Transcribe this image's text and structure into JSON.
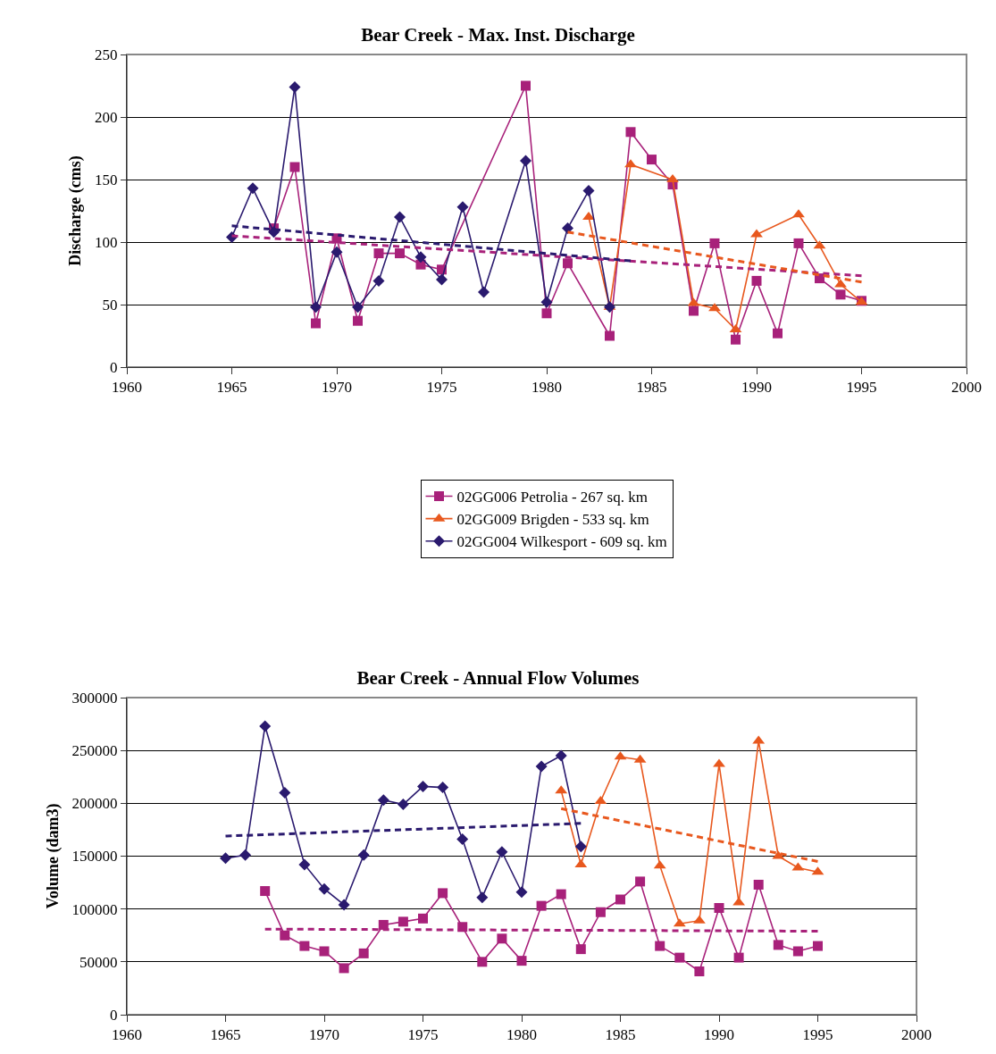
{
  "chart_data": [
    {
      "type": "line",
      "title": "Bear Creek - Max. Inst. Discharge",
      "ylabel": "Discharge (cms)",
      "xlim": [
        1960,
        2000
      ],
      "xticks": [
        1960,
        1965,
        1970,
        1975,
        1980,
        1985,
        1990,
        1995,
        2000
      ],
      "ylim": [
        0,
        250
      ],
      "yticks": [
        0,
        50,
        100,
        150,
        200,
        250
      ],
      "grid": "y",
      "legend": "bottom",
      "series": [
        {
          "name": "02GG006 Petrolia - 267 sq. km",
          "color": "#a8217a",
          "marker": "square",
          "line_style": "solid",
          "x": [
            1967,
            1968,
            1969,
            1970,
            1971,
            1972,
            1973,
            1974,
            1975,
            1979,
            1980,
            1981,
            1983,
            1984,
            1985,
            1986,
            1987,
            1988,
            1989,
            1990,
            1991,
            1992,
            1993,
            1994,
            1995
          ],
          "values": [
            111,
            160,
            35,
            103,
            37,
            91,
            91,
            82,
            78,
            225,
            43,
            83,
            25,
            188,
            166,
            146,
            45,
            99,
            22,
            69,
            27,
            99,
            71,
            58,
            53
          ]
        },
        {
          "name": "02GG009 Brigden - 533 sq. km",
          "color": "#e8581e",
          "marker": "triangle",
          "line_style": "solid",
          "x": [
            1982,
            1983,
            1984,
            1986,
            1987,
            1988,
            1989,
            1990,
            1992,
            1993,
            1994,
            1995
          ],
          "values": [
            120,
            48,
            162,
            150,
            51,
            47,
            30,
            106,
            122,
            97,
            66,
            52
          ]
        },
        {
          "name": "02GG004 Wilkesport - 609 sq. km",
          "color": "#2a1a6e",
          "marker": "diamond",
          "line_style": "solid",
          "x": [
            1965,
            1966,
            1967,
            1968,
            1969,
            1970,
            1971,
            1972,
            1973,
            1974,
            1975,
            1976,
            1977,
            1979,
            1980,
            1981,
            1982,
            1983
          ],
          "values": [
            104,
            143,
            108,
            224,
            48,
            92,
            48,
            69,
            120,
            88,
            70,
            128,
            60,
            165,
            52,
            111,
            141,
            48
          ]
        },
        {
          "color": "#a8217a",
          "marker": "none",
          "line_style": "dashed",
          "x": [
            1965,
            1995
          ],
          "values": [
            105,
            73
          ]
        },
        {
          "color": "#e8581e",
          "marker": "none",
          "line_style": "dashed",
          "x": [
            1981,
            1995
          ],
          "values": [
            108,
            68
          ]
        },
        {
          "color": "#2a1a6e",
          "marker": "none",
          "line_style": "dashed",
          "x": [
            1965,
            1984
          ],
          "values": [
            113,
            85
          ]
        }
      ]
    },
    {
      "type": "line",
      "title": "Bear Creek - Annual Flow Volumes",
      "ylabel": "Volume (dam3)",
      "xlim": [
        1960,
        2000
      ],
      "xticks": [
        1960,
        1965,
        1970,
        1975,
        1980,
        1985,
        1990,
        1995,
        2000
      ],
      "ylim": [
        0,
        300000
      ],
      "yticks": [
        0,
        50000,
        100000,
        150000,
        200000,
        250000,
        300000
      ],
      "grid": "y",
      "legend": false,
      "series": [
        {
          "color": "#a8217a",
          "marker": "square",
          "line_style": "solid",
          "x": [
            1967,
            1968,
            1969,
            1970,
            1971,
            1972,
            1973,
            1974,
            1975,
            1976,
            1977,
            1978,
            1979,
            1980,
            1981,
            1982,
            1983,
            1984,
            1985,
            1986,
            1987,
            1988,
            1989,
            1990,
            1991,
            1992,
            1993,
            1994,
            1995
          ],
          "values": [
            117000,
            75000,
            65000,
            60000,
            44000,
            58000,
            85000,
            88000,
            91000,
            115000,
            83000,
            50000,
            72000,
            51000,
            103000,
            114000,
            62000,
            97000,
            109000,
            126000,
            65000,
            54000,
            41000,
            101000,
            54000,
            123000,
            66000,
            60000,
            65000
          ]
        },
        {
          "color": "#e8581e",
          "marker": "triangle",
          "line_style": "solid",
          "x": [
            1982,
            1983,
            1984,
            1985,
            1986,
            1987,
            1988,
            1989,
            1990,
            1991,
            1992,
            1993,
            1994,
            1995
          ],
          "values": [
            212000,
            142000,
            202000,
            244000,
            241000,
            141000,
            86000,
            89000,
            237000,
            106000,
            259000,
            150000,
            139000,
            135000
          ]
        },
        {
          "color": "#2a1a6e",
          "marker": "diamond",
          "line_style": "solid",
          "x": [
            1965,
            1966,
            1967,
            1968,
            1969,
            1970,
            1971,
            1972,
            1973,
            1974,
            1975,
            1976,
            1977,
            1978,
            1979,
            1980,
            1981,
            1982,
            1983
          ],
          "values": [
            148000,
            151000,
            273000,
            210000,
            142000,
            119000,
            104000,
            151000,
            203000,
            199000,
            216000,
            215000,
            166000,
            111000,
            154000,
            116000,
            235000,
            245000,
            159000
          ]
        },
        {
          "color": "#a8217a",
          "marker": "none",
          "line_style": "dashed",
          "x": [
            1967,
            1995
          ],
          "values": [
            81000,
            79000
          ]
        },
        {
          "color": "#e8581e",
          "marker": "none",
          "line_style": "dashed",
          "x": [
            1982,
            1995
          ],
          "values": [
            195000,
            145000
          ]
        },
        {
          "color": "#2a1a6e",
          "marker": "none",
          "line_style": "dashed",
          "x": [
            1965,
            1983
          ],
          "values": [
            169000,
            181000
          ]
        }
      ]
    }
  ]
}
